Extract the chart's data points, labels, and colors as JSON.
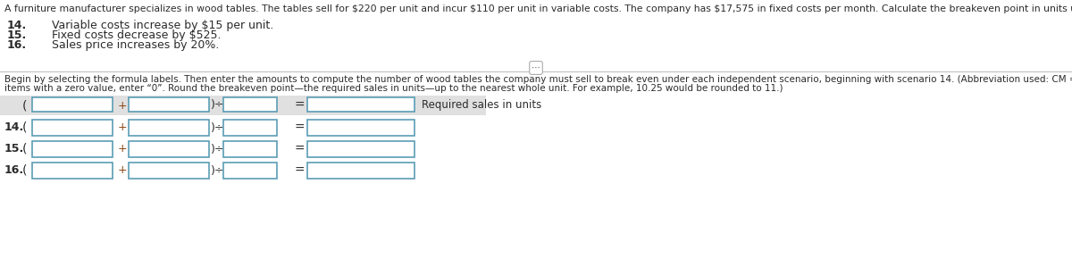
{
  "title_text": "A furniture manufacturer specializes in wood tables. The tables sell for $220 per unit and incur $110 per unit in variable costs. The company has $17,575 in fixed costs per month. Calculate the breakeven point in units under each independent scenario.",
  "scenarios": [
    {
      "num": "14.",
      "label": "Variable costs increase by $15 per unit."
    },
    {
      "num": "15.",
      "label": "Fixed costs decrease by $525."
    },
    {
      "num": "16.",
      "label": "Sales price increases by 20%."
    }
  ],
  "instructions_line1": "Begin by selecting the formula labels. Then enter the amounts to compute the number of wood tables the company must sell to break even under each independent scenario, beginning with scenario 14. (Abbreviation used: CM = contribution margin. Complete all input fields. For",
  "instructions_line2": "items with a zero value, enter “0”. Round the breakeven point—the required sales in units—up to the nearest whole unit. For example, 10.25 would be rounded to 11.)",
  "header_label": "Required sales in units",
  "row_labels": [
    "14.",
    "15.",
    "16."
  ],
  "bg_color": "#ffffff",
  "text_color": "#2b2b2b",
  "scenario_color": "#2b2b2b",
  "plus_color": "#8B4513",
  "box_border_color": "#5b9db5",
  "header_bg": "#e0e0e0",
  "divider_color": "#bbbbbb",
  "title_fontsize": 7.8,
  "scenario_num_fontsize": 9.0,
  "scenario_label_fontsize": 9.0,
  "instr_fontsize": 7.5,
  "operator_fontsize": 9.5,
  "header_label_fontsize": 8.5
}
